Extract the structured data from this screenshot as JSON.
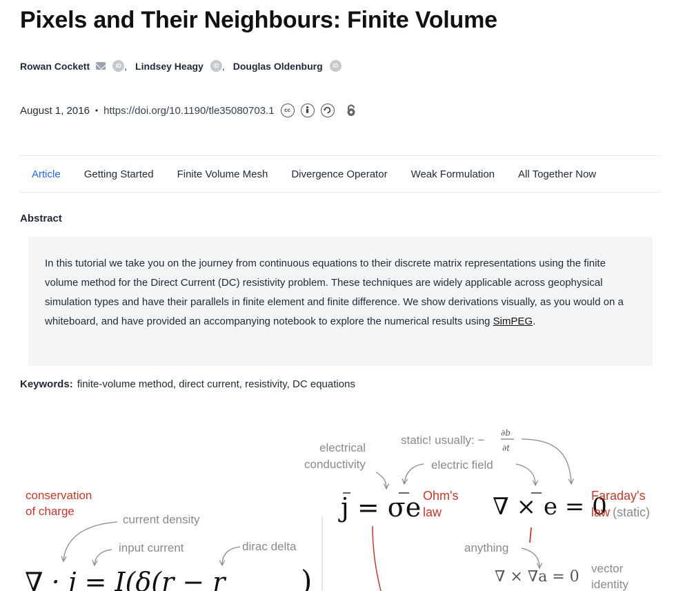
{
  "title": "Pixels and Their Neighbours: Finite Volume",
  "authors": [
    {
      "name": "Rowan Cockett",
      "email": true,
      "orcid": true
    },
    {
      "name": "Lindsey Heagy",
      "email": false,
      "orcid": true
    },
    {
      "name": "Douglas Oldenburg",
      "email": false,
      "orcid": true
    }
  ],
  "author_separator": ",",
  "icons": {
    "email": "mail-icon",
    "orcid": "orcid-icon",
    "orcid_text": "iD"
  },
  "meta": {
    "date": "August 1, 2016",
    "separator": "•",
    "doi": "https://doi.org/10.1190/tle35080703.1",
    "license_icons": [
      "cc",
      "by",
      "sa"
    ],
    "open_access_icon": "open-access-icon"
  },
  "tabs": [
    "Article",
    "Getting Started",
    "Finite Volume Mesh",
    "Divergence Operator",
    "Weak Formulation",
    "All Together Now"
  ],
  "abstract": {
    "heading": "Abstract",
    "text_before_link": "In this tutorial we take you on the journey from continuous equations to their discrete matrix representations using the finite volume method for the Direct Current (DC) resistivity problem. These techniques are widely applicable across geophysical simulation types and have their parallels in finite element and finite difference. We show derivations visually, as you would on a whiteboard, and have provided an accompanying notebook to explore the numerical results using ",
    "link_text": "SimPEG",
    "text_after_link": "."
  },
  "keywords": {
    "label": "Keywords:",
    "value": "finite-volume method, direct current, resistivity, DC equations"
  },
  "figure": {
    "colors": {
      "red": "#c0392b",
      "gray": "#8a8a8a",
      "black": "#111111"
    },
    "labels": {
      "conservation": [
        "conservation",
        "of charge"
      ],
      "current_density": "current density",
      "input_current": "input current",
      "dirac_delta": "dirac delta",
      "electrical_conductivity": [
        "electrical",
        "conductivity"
      ],
      "static_usually": "static! usually: −",
      "electric_field": "electric field",
      "ohms_law": [
        "Ohm's",
        "law"
      ],
      "faradays_law": [
        "Faraday's",
        "law"
      ],
      "static_suffix": "(static)",
      "anything": "anything",
      "vector_identity": [
        "vector",
        "identity"
      ]
    },
    "equations": {
      "divergence": "∇ · j = I(δ(r − r",
      "ohm": "j = σe",
      "faraday": "∇ × e = 0",
      "identity": "∇ × ∇a = 0",
      "frac_num": "∂b",
      "frac_den": "∂t"
    }
  }
}
